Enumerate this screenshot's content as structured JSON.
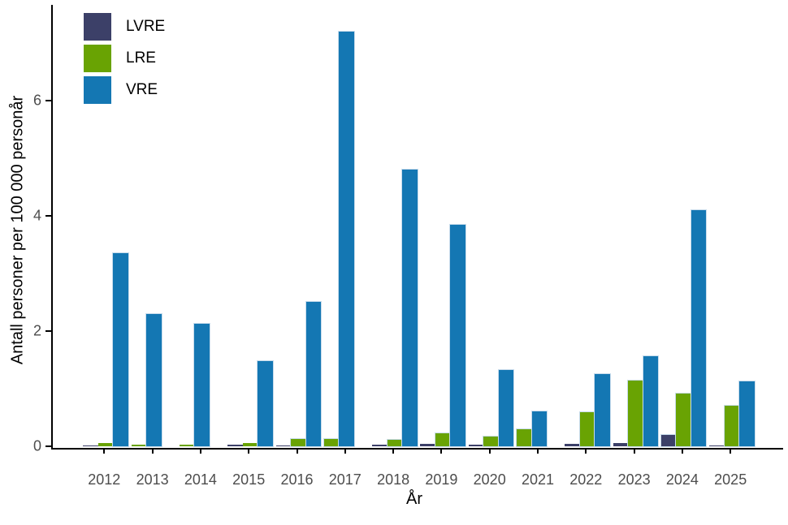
{
  "chart_data": {
    "type": "bar",
    "title": "",
    "xlabel": "År",
    "ylabel": "Antall personer per 100 000 personår",
    "categories": [
      "2012",
      "2013",
      "2014",
      "2015",
      "2016",
      "2017",
      "2018",
      "2019",
      "2020",
      "2021",
      "2022",
      "2023",
      "2024",
      "2025"
    ],
    "series": [
      {
        "name": "LVRE",
        "color": "#3c4068",
        "values": [
          0.02,
          null,
          null,
          0.03,
          0.02,
          null,
          0.03,
          0.04,
          0.03,
          null,
          0.04,
          0.05,
          0.2,
          0.02
        ]
      },
      {
        "name": "LRE",
        "color": "#69a303",
        "values": [
          0.05,
          0.03,
          0.03,
          0.06,
          0.12,
          0.13,
          0.11,
          0.22,
          0.17,
          0.29,
          0.59,
          1.14,
          0.91,
          0.71
        ]
      },
      {
        "name": "VRE",
        "color": "#1477b3",
        "values": [
          3.35,
          2.3,
          2.13,
          1.48,
          2.5,
          7.2,
          4.8,
          3.84,
          1.32,
          0.6,
          1.26,
          1.56,
          4.1,
          1.12
        ]
      }
    ],
    "yticks": [
      0,
      2,
      4,
      6
    ],
    "ylim": [
      0,
      7.5
    ],
    "legend_position": "top-left",
    "grid": false,
    "axis_text_color": "#4d4d4d",
    "axis_line_color": "#000000",
    "bar_outline_color": "#c8dcec"
  }
}
